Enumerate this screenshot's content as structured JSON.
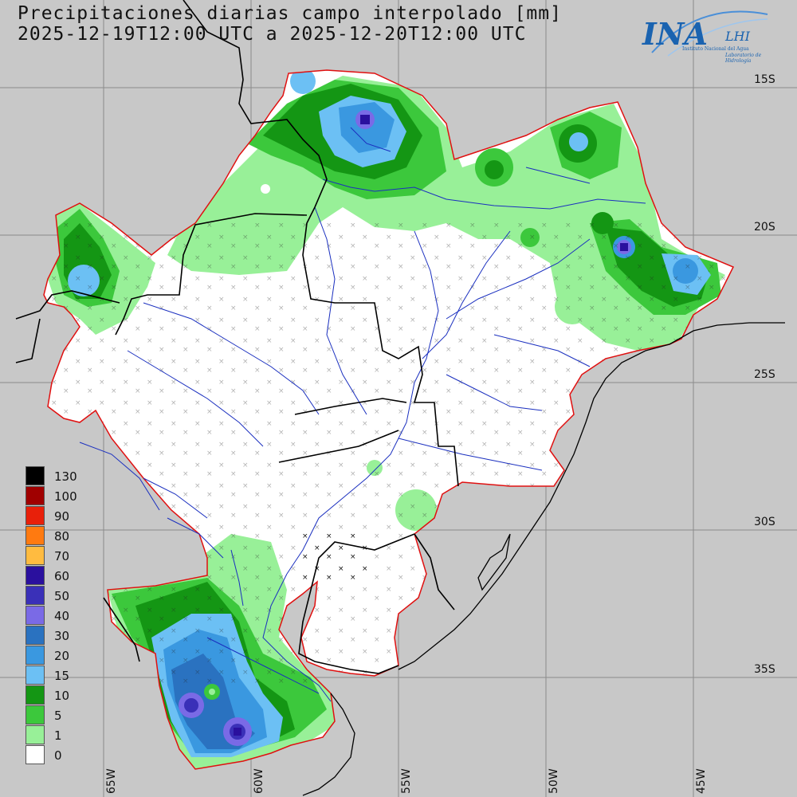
{
  "title": {
    "line1": "Precipitaciones diarias campo interpolado [mm]",
    "line2": "2025-12-19T12:00 UTC a 2025-12-20T12:00 UTC"
  },
  "logo": {
    "name": "INA",
    "unit": "LHI",
    "text1": "Instituto Nacional del Agua",
    "text2": "Laboratorio de Hidrología"
  },
  "lat_labels": [
    "15S",
    "20S",
    "25S",
    "30S",
    "35S"
  ],
  "lon_labels": [
    "65W",
    "60W",
    "55W",
    "50W",
    "45W"
  ],
  "legend": [
    {
      "label": "130",
      "color": "#000000"
    },
    {
      "label": "100",
      "color": "#a00000"
    },
    {
      "label": "90",
      "color": "#e8200a"
    },
    {
      "label": "80",
      "color": "#ff7a10"
    },
    {
      "label": "70",
      "color": "#ffbb40"
    },
    {
      "label": "60",
      "color": "#2a109e"
    },
    {
      "label": "50",
      "color": "#3a30b8"
    },
    {
      "label": "40",
      "color": "#7a6ae6"
    },
    {
      "label": "30",
      "color": "#2a72c0"
    },
    {
      "label": "20",
      "color": "#3a98e0"
    },
    {
      "label": "15",
      "color": "#6cc0f4"
    },
    {
      "label": "10",
      "color": "#149614"
    },
    {
      "label": "5",
      "color": "#3cc83c"
    },
    {
      "label": "1",
      "color": "#98f098"
    },
    {
      "label": "0",
      "color": "#ffffff"
    }
  ]
}
